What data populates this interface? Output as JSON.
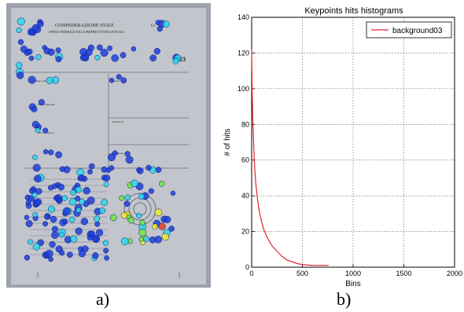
{
  "captions": {
    "a": "a)",
    "b": "b)"
  },
  "colors": {
    "photo_bg": "#9ea2ad",
    "photo_paper": "#c2c5cc",
    "keypoint_blue": "#1f3fd8",
    "keypoint_cyan": "#2ad8e6",
    "keypoint_green": "#6fe63a",
    "keypoint_yellow": "#f2ea2a",
    "keypoint_red": "#e0401f",
    "series_line": "#e3242b",
    "grid": "#555555"
  },
  "document": {
    "header_line_1": "CONFEDERAZIONE SVIZZ",
    "header_line_2": "UFFICIO FEDERALE DELLA PROPRIETÀ INTELLETTUALE",
    "header_right": "Cl.",
    "number_fragment": "023",
    "fields": [
      "Numero della domanda",
      "Data di deposito",
      "Data di rilascio",
      "Titolari",
      "Invenzione",
      "Mandatario"
    ]
  },
  "chart_data": {
    "type": "line",
    "title": "Keypoints hits histograms",
    "xlabel": "Bins",
    "ylabel": "# of hits",
    "xlim": [
      0,
      2000
    ],
    "ylim": [
      0,
      140
    ],
    "xticks": [
      0,
      500,
      1000,
      1500,
      2000
    ],
    "yticks": [
      0,
      20,
      40,
      60,
      80,
      100,
      120,
      140
    ],
    "grid": true,
    "legend_placement": "top-right",
    "series": [
      {
        "name": "background03",
        "color": "#e3242b",
        "x": [
          0,
          5,
          10,
          20,
          30,
          40,
          50,
          60,
          80,
          100,
          120,
          150,
          180,
          200,
          250,
          300,
          350,
          400,
          450,
          500,
          600,
          700,
          760
        ],
        "y": [
          122,
          100,
          85,
          68,
          55,
          47,
          42,
          37,
          30,
          25,
          21,
          17,
          14,
          12,
          9,
          6,
          4,
          3,
          2,
          1.5,
          1,
          1,
          1
        ]
      }
    ]
  }
}
